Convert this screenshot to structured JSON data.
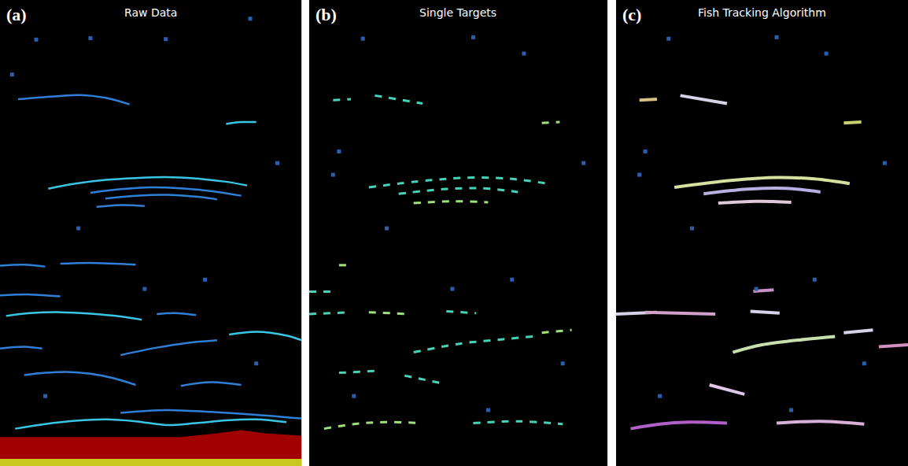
{
  "chart_data": [
    {
      "type": "line",
      "title": "Raw Data",
      "annotations": [
        "(a)"
      ],
      "xlim": [
        0,
        100
      ],
      "ylim": [
        100,
        0
      ],
      "tick_labels": false,
      "line_style": "solid",
      "series": [
        {
          "color": "#2f7fd8",
          "x": [
            6,
            18,
            27,
            35,
            43
          ],
          "values": [
            21.3,
            20.7,
            20.4,
            21.0,
            22.4
          ]
        },
        {
          "color": "#39c6e6",
          "x": [
            75,
            80,
            85
          ],
          "values": [
            26.6,
            26.2,
            26.2
          ]
        },
        {
          "color": "#39c6e6",
          "x": [
            16,
            25,
            35,
            45,
            55,
            65,
            75,
            82
          ],
          "values": [
            40.5,
            39.4,
            38.6,
            38.2,
            38.0,
            38.3,
            39.0,
            39.8
          ]
        },
        {
          "color": "#2f7fd8",
          "x": [
            30,
            40,
            50,
            60,
            70,
            80
          ],
          "values": [
            41.4,
            40.6,
            40.2,
            40.4,
            41.0,
            42.0
          ]
        },
        {
          "color": "#2f7fd8",
          "x": [
            35,
            45,
            55,
            65,
            72
          ],
          "values": [
            42.6,
            42.0,
            41.8,
            42.2,
            42.8
          ]
        },
        {
          "color": "#2f7fd8",
          "x": [
            32,
            40,
            48
          ],
          "values": [
            44.4,
            44.0,
            44.2
          ]
        },
        {
          "color": "#2f7fd8",
          "x": [
            0,
            8,
            15
          ],
          "values": [
            57.0,
            56.8,
            57.2
          ]
        },
        {
          "color": "#2f7fd8",
          "x": [
            20,
            30,
            45
          ],
          "values": [
            56.6,
            56.4,
            56.8
          ]
        },
        {
          "color": "#2f7fd8",
          "x": [
            0,
            10,
            20
          ],
          "values": [
            63.4,
            63.2,
            63.6
          ]
        },
        {
          "color": "#39c6e6",
          "x": [
            2,
            10,
            20,
            30,
            40,
            47
          ],
          "values": [
            67.8,
            67.2,
            67.0,
            67.3,
            67.9,
            68.6
          ]
        },
        {
          "color": "#2f7fd8",
          "x": [
            52,
            58,
            65
          ],
          "values": [
            67.4,
            67.2,
            67.6
          ]
        },
        {
          "color": "#2f7fd8",
          "x": [
            0,
            8,
            14
          ],
          "values": [
            74.8,
            74.4,
            74.8
          ]
        },
        {
          "color": "#2f7fd8",
          "x": [
            40,
            52,
            62,
            72
          ],
          "values": [
            76.2,
            74.6,
            73.6,
            73.0
          ]
        },
        {
          "color": "#39c6e6",
          "x": [
            76,
            85,
            95,
            100
          ],
          "values": [
            71.8,
            71.2,
            72.0,
            73.0
          ]
        },
        {
          "color": "#2f7fd8",
          "x": [
            8,
            15,
            22,
            30,
            38,
            45
          ],
          "values": [
            80.5,
            80.0,
            79.8,
            80.2,
            81.2,
            82.6
          ]
        },
        {
          "color": "#2f7fd8",
          "x": [
            60,
            70,
            80
          ],
          "values": [
            82.8,
            82.0,
            82.6
          ]
        },
        {
          "color": "#39c6e6",
          "x": [
            5,
            15,
            25,
            35,
            45,
            55,
            65,
            75,
            85,
            95
          ],
          "values": [
            92.0,
            91.0,
            90.3,
            90.0,
            90.4,
            91.2,
            90.8,
            90.2,
            90.0,
            90.6
          ]
        },
        {
          "color": "#2f7fd8",
          "x": [
            40,
            55,
            70,
            85,
            100
          ],
          "values": [
            88.6,
            88.0,
            88.4,
            89.0,
            89.8
          ]
        },
        {
          "type": "scatter",
          "marker": "square",
          "color": "#2a5fb0",
          "x": [
            12,
            30,
            55,
            83,
            4,
            92,
            26,
            68,
            48,
            15,
            85
          ],
          "values": [
            8.5,
            8.2,
            8.4,
            4.0,
            16.0,
            35.0,
            49.0,
            60.0,
            62.0,
            85.0,
            78.0
          ]
        },
        {
          "type": "area",
          "color": "#a00000",
          "x": [
            0,
            60,
            72,
            80,
            88,
            100,
            100,
            0
          ],
          "values": [
            93.8,
            93.8,
            93.0,
            92.3,
            93.0,
            93.5,
            100,
            100
          ]
        },
        {
          "type": "area",
          "color": "#c8c820",
          "x": [
            0,
            100,
            100,
            0
          ],
          "values": [
            98.5,
            98.5,
            100,
            100
          ]
        }
      ]
    },
    {
      "type": "line",
      "title": "Single Targets",
      "annotations": [
        "(b)"
      ],
      "xlim": [
        0,
        100
      ],
      "ylim": [
        100,
        0
      ],
      "tick_labels": false,
      "line_style": "dash",
      "series": [
        {
          "color": "#46d3b6",
          "x": [
            8,
            14
          ],
          "values": [
            21.5,
            21.3
          ]
        },
        {
          "color": "#46d3b6",
          "x": [
            22,
            38
          ],
          "values": [
            20.5,
            22.2
          ]
        },
        {
          "color": "#9fe07a",
          "x": [
            78,
            84
          ],
          "values": [
            26.4,
            26.2
          ]
        },
        {
          "color": "#46d3b6",
          "x": [
            20,
            40,
            55,
            68,
            80
          ],
          "values": [
            40.2,
            38.7,
            38.1,
            38.4,
            39.4
          ]
        },
        {
          "color": "#46d3b6",
          "x": [
            30,
            45,
            58,
            70
          ],
          "values": [
            41.6,
            40.6,
            40.4,
            41.2
          ]
        },
        {
          "color": "#9fe07a",
          "x": [
            35,
            48,
            60
          ],
          "values": [
            43.6,
            43.2,
            43.4
          ]
        },
        {
          "color": "#9fe07a",
          "x": [
            10,
            14
          ],
          "values": [
            56.9,
            56.9
          ]
        },
        {
          "color": "#46d3b6",
          "x": [
            0,
            8
          ],
          "values": [
            62.6,
            62.6
          ]
        },
        {
          "color": "#46d3b6",
          "x": [
            0,
            14
          ],
          "values": [
            67.4,
            67.0
          ]
        },
        {
          "color": "#9fe07a",
          "x": [
            20,
            34
          ],
          "values": [
            67.0,
            67.4
          ]
        },
        {
          "color": "#46d3b6",
          "x": [
            46,
            56
          ],
          "values": [
            66.8,
            67.2
          ]
        },
        {
          "color": "#46d3b6",
          "x": [
            35,
            50,
            65,
            75
          ],
          "values": [
            75.6,
            73.8,
            72.8,
            72.2
          ]
        },
        {
          "color": "#9fe07a",
          "x": [
            78,
            88
          ],
          "values": [
            71.4,
            70.8
          ]
        },
        {
          "color": "#46d3b6",
          "x": [
            10,
            22
          ],
          "values": [
            80.0,
            79.6
          ]
        },
        {
          "color": "#46d3b6",
          "x": [
            32,
            44
          ],
          "values": [
            80.6,
            82.2
          ]
        },
        {
          "color": "#9fe07a",
          "x": [
            5,
            15,
            25,
            38
          ],
          "values": [
            92.0,
            91.0,
            90.6,
            90.8
          ]
        },
        {
          "color": "#46d3b6",
          "x": [
            55,
            70,
            85
          ],
          "values": [
            90.8,
            90.4,
            91.0
          ]
        },
        {
          "type": "scatter",
          "marker": "square",
          "color": "#2a5fb0",
          "x": [
            18,
            55,
            72,
            10,
            8,
            92,
            26,
            68,
            48,
            15,
            85,
            60
          ],
          "values": [
            8.3,
            8.0,
            11.5,
            32.5,
            37.5,
            35.0,
            49.0,
            60.0,
            62.0,
            85.0,
            78.0,
            88.0
          ]
        }
      ]
    },
    {
      "type": "line",
      "title": "Fish Tracking Algorithm",
      "annotations": [
        "(c)"
      ],
      "xlim": [
        0,
        100
      ],
      "ylim": [
        100,
        0
      ],
      "tick_labels": false,
      "line_style": "solid",
      "series": [
        {
          "color": "#d8c080",
          "x": [
            8,
            14
          ],
          "values": [
            21.5,
            21.3
          ]
        },
        {
          "color": "#d8d2e8",
          "x": [
            22,
            38
          ],
          "values": [
            20.5,
            22.2
          ]
        },
        {
          "color": "#c8d070",
          "x": [
            78,
            84
          ],
          "values": [
            26.4,
            26.2
          ]
        },
        {
          "color": "#d8e0a0",
          "x": [
            20,
            40,
            55,
            68,
            80
          ],
          "values": [
            40.2,
            38.7,
            38.1,
            38.4,
            39.4
          ]
        },
        {
          "color": "#b8b0e0",
          "x": [
            30,
            45,
            58,
            70
          ],
          "values": [
            41.6,
            40.6,
            40.4,
            41.2
          ]
        },
        {
          "color": "#e0c8d8",
          "x": [
            35,
            48,
            60
          ],
          "values": [
            43.6,
            43.2,
            43.4
          ]
        },
        {
          "color": "#c890c8",
          "x": [
            47,
            54
          ],
          "values": [
            62.5,
            62.2
          ]
        },
        {
          "color": "#d8d2e8",
          "x": [
            0,
            14
          ],
          "values": [
            67.4,
            67.0
          ]
        },
        {
          "color": "#d0a0c8",
          "x": [
            10,
            34
          ],
          "values": [
            67.0,
            67.4
          ]
        },
        {
          "color": "#d8d2e8",
          "x": [
            46,
            56
          ],
          "values": [
            66.8,
            67.2
          ]
        },
        {
          "color": "#c8e0b0",
          "x": [
            40,
            50,
            65,
            75
          ],
          "values": [
            75.6,
            74.0,
            72.8,
            72.2
          ]
        },
        {
          "color": "#d090c0",
          "x": [
            90,
            100
          ],
          "values": [
            74.4,
            74.0
          ]
        },
        {
          "color": "#d8d2e8",
          "x": [
            78,
            88
          ],
          "values": [
            71.4,
            70.8
          ]
        },
        {
          "color": "#e0c8e8",
          "x": [
            32,
            44
          ],
          "values": [
            82.6,
            84.6
          ]
        },
        {
          "color": "#b060c8",
          "x": [
            5,
            15,
            25,
            38
          ],
          "values": [
            92.0,
            91.0,
            90.6,
            90.8
          ]
        },
        {
          "color": "#d8b0d8",
          "x": [
            55,
            70,
            85
          ],
          "values": [
            90.8,
            90.4,
            91.0
          ]
        },
        {
          "type": "scatter",
          "marker": "square",
          "color": "#2a5fb0",
          "x": [
            18,
            55,
            72,
            10,
            8,
            92,
            26,
            68,
            48,
            15,
            85,
            60
          ],
          "values": [
            8.3,
            8.0,
            11.5,
            32.5,
            37.5,
            35.0,
            49.0,
            60.0,
            62.0,
            85.0,
            78.0,
            88.0
          ]
        }
      ]
    }
  ]
}
